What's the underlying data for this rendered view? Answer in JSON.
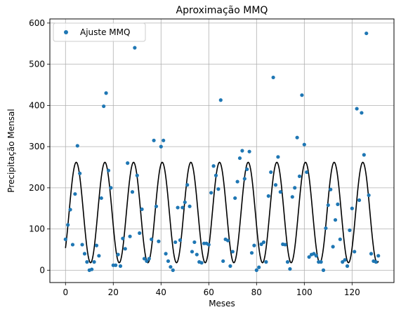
{
  "chart_data": {
    "type": "scatter",
    "title": "Aproximação MMQ",
    "xlabel": "Meses",
    "ylabel": "Precipitação Mensal",
    "xlim": [
      -6.55,
      137.55
    ],
    "ylim": [
      -30,
      610
    ],
    "x_ticks": [
      0,
      20,
      40,
      60,
      80,
      100,
      120
    ],
    "y_ticks": [
      0,
      100,
      200,
      300,
      400,
      500,
      600
    ],
    "grid": true,
    "legend": {
      "position": "top-left",
      "entries": [
        "Ajuste MMQ"
      ]
    },
    "scatter_color": "#1f77b4",
    "line_color": "#000000",
    "series": [
      {
        "name": "Ajuste MMQ",
        "kind": "scatter",
        "x": [
          0,
          1,
          2,
          3,
          4,
          5,
          6,
          7,
          8,
          9,
          10,
          11,
          12,
          13,
          14,
          15,
          16,
          17,
          18,
          19,
          20,
          21,
          22,
          23,
          24,
          25,
          26,
          27,
          28,
          29,
          30,
          31,
          32,
          33,
          34,
          35,
          36,
          37,
          38,
          39,
          40,
          41,
          42,
          43,
          44,
          45,
          46,
          47,
          48,
          49,
          50,
          51,
          52,
          53,
          54,
          55,
          56,
          57,
          58,
          59,
          60,
          61,
          62,
          63,
          64,
          65,
          66,
          67,
          68,
          69,
          70,
          71,
          72,
          73,
          74,
          75,
          76,
          77,
          78,
          79,
          80,
          81,
          82,
          83,
          84,
          85,
          86,
          87,
          88,
          89,
          90,
          91,
          92,
          93,
          94,
          95,
          96,
          97,
          98,
          99,
          100,
          101,
          102,
          103,
          104,
          105,
          106,
          107,
          108,
          109,
          110,
          111,
          112,
          113,
          114,
          115,
          116,
          117,
          118,
          119,
          120,
          121,
          122,
          123,
          124,
          125,
          126,
          127,
          128,
          129,
          130,
          131
        ],
        "y": [
          75,
          110,
          147,
          62,
          185,
          302,
          235,
          62,
          40,
          20,
          0,
          2,
          20,
          60,
          35,
          175,
          398,
          430,
          242,
          200,
          12,
          12,
          38,
          10,
          77,
          52,
          260,
          82,
          190,
          540,
          230,
          90,
          148,
          28,
          22,
          28,
          75,
          315,
          155,
          70,
          300,
          315,
          40,
          22,
          8,
          0,
          68,
          152,
          73,
          152,
          165,
          207,
          155,
          45,
          68,
          38,
          20,
          18,
          65,
          65,
          62,
          188,
          253,
          230,
          197,
          413,
          22,
          75,
          72,
          10,
          45,
          175,
          215,
          272,
          290,
          222,
          245,
          288,
          42,
          60,
          0,
          7,
          63,
          68,
          20,
          180,
          238,
          468,
          207,
          275,
          190,
          63,
          62,
          20,
          3,
          178,
          200,
          322,
          228,
          425,
          305,
          238,
          32,
          38,
          40,
          35,
          20,
          20,
          0,
          102,
          158,
          196,
          57,
          122,
          160,
          75,
          20,
          25,
          10,
          97,
          150,
          45,
          392,
          170,
          382,
          280,
          575,
          182,
          40,
          22,
          20,
          35
        ]
      },
      {
        "name": "",
        "kind": "line",
        "model": {
          "mean": 140,
          "amplitude": 122,
          "period": 12,
          "phase_peak_month": 4.5,
          "x_start": 0,
          "x_end": 131
        }
      }
    ]
  }
}
